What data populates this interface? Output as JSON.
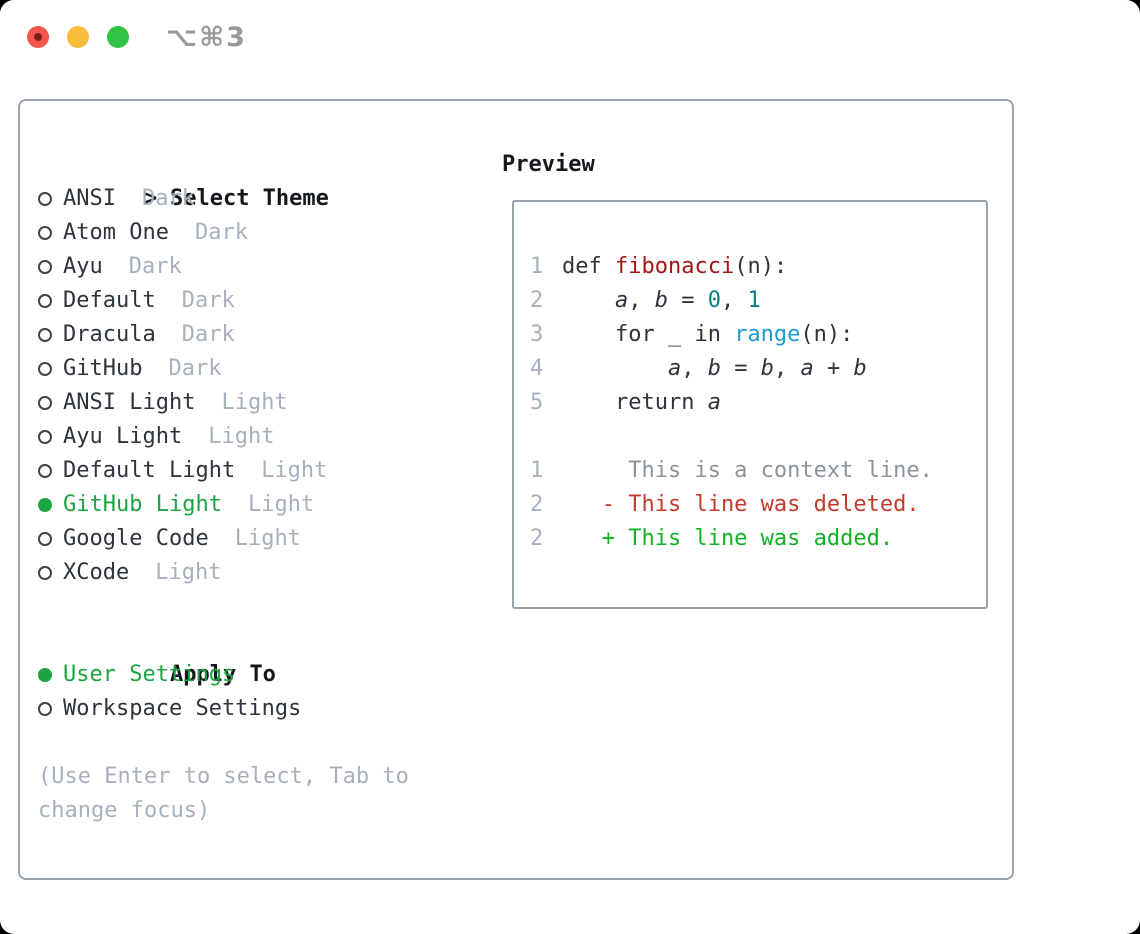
{
  "titlebar": {
    "shortcut": "⌥⌘3",
    "buttons": [
      {
        "name": "close",
        "color": "#f4564d"
      },
      {
        "name": "minimize",
        "color": "#f9bd3b"
      },
      {
        "name": "zoom",
        "color": "#2fc344"
      }
    ]
  },
  "theme_panel": {
    "header_prefix": ">",
    "header": "Select Theme",
    "items": [
      {
        "name": "ANSI",
        "tag": "Dark",
        "selected": false
      },
      {
        "name": "Atom One",
        "tag": "Dark",
        "selected": false
      },
      {
        "name": "Ayu",
        "tag": "Dark",
        "selected": false
      },
      {
        "name": "Default",
        "tag": "Dark",
        "selected": false
      },
      {
        "name": "Dracula",
        "tag": "Dark",
        "selected": false
      },
      {
        "name": "GitHub",
        "tag": "Dark",
        "selected": false
      },
      {
        "name": "ANSI Light",
        "tag": "Light",
        "selected": false
      },
      {
        "name": "Ayu Light",
        "tag": "Light",
        "selected": false
      },
      {
        "name": "Default Light",
        "tag": "Light",
        "selected": false
      },
      {
        "name": "GitHub Light",
        "tag": "Light",
        "selected": true
      },
      {
        "name": "Google Code",
        "tag": "Light",
        "selected": false
      },
      {
        "name": "XCode",
        "tag": "Light",
        "selected": false
      }
    ]
  },
  "apply_panel": {
    "header": "Apply To",
    "items": [
      {
        "name": "User Settings",
        "selected": true
      },
      {
        "name": "Workspace Settings",
        "selected": false
      }
    ]
  },
  "help_lines": [
    "(Use Enter to select, Tab to",
    "change focus)"
  ],
  "preview": {
    "title": "Preview",
    "lines": [
      {
        "num": "1",
        "tokens": [
          {
            "t": "def ",
            "c": "plain"
          },
          {
            "t": "fibonacci",
            "c": "function"
          },
          {
            "t": "(n):",
            "c": "plain"
          }
        ]
      },
      {
        "num": "2",
        "tokens": [
          {
            "t": "    ",
            "c": "plain"
          },
          {
            "t": "a",
            "c": "variable"
          },
          {
            "t": ", ",
            "c": "plain"
          },
          {
            "t": "b",
            "c": "variable"
          },
          {
            "t": " = ",
            "c": "plain"
          },
          {
            "t": "0",
            "c": "number"
          },
          {
            "t": ", ",
            "c": "plain"
          },
          {
            "t": "1",
            "c": "number"
          }
        ]
      },
      {
        "num": "3",
        "tokens": [
          {
            "t": "    for _ in ",
            "c": "plain"
          },
          {
            "t": "range",
            "c": "builtin"
          },
          {
            "t": "(n):",
            "c": "plain"
          }
        ]
      },
      {
        "num": "4",
        "tokens": [
          {
            "t": "        ",
            "c": "plain"
          },
          {
            "t": "a",
            "c": "variable"
          },
          {
            "t": ", ",
            "c": "plain"
          },
          {
            "t": "b",
            "c": "variable"
          },
          {
            "t": " = ",
            "c": "plain"
          },
          {
            "t": "b",
            "c": "variable"
          },
          {
            "t": ", ",
            "c": "plain"
          },
          {
            "t": "a",
            "c": "variable"
          },
          {
            "t": " + ",
            "c": "plain"
          },
          {
            "t": "b",
            "c": "variable"
          }
        ]
      },
      {
        "num": "5",
        "tokens": [
          {
            "t": "    return ",
            "c": "plain"
          },
          {
            "t": "a",
            "c": "variable"
          }
        ]
      },
      {
        "num": "",
        "tokens": []
      },
      {
        "num": "1",
        "tokens": [
          {
            "t": "     This is a context line.",
            "c": "context"
          }
        ]
      },
      {
        "num": "2",
        "tokens": [
          {
            "t": "   - This line was deleted.",
            "c": "deleted"
          }
        ]
      },
      {
        "num": "2",
        "tokens": [
          {
            "t": "   + This line was added.",
            "c": "added"
          }
        ]
      }
    ]
  },
  "colors": {
    "header_text": "#14181d",
    "item_text": "#2e343c",
    "tag_text": "#a7b0bd",
    "help_text": "#a7b0bd",
    "line_number": "#a7b0bd",
    "selected_green": "#1da442",
    "ring_border": "#3e444d",
    "box_border": "#9aa2ad",
    "shortcut_gray": "#98989d",
    "close_inner_dot": "#7c1f16",
    "syntax": {
      "plain": "#2e343c",
      "function": "#a31616",
      "number": "#0e7e86",
      "builtin": "#1f9ad1",
      "variable": "#2e343c",
      "context": "#8b949e",
      "deleted": "#c23b2a",
      "added": "#12b224"
    }
  }
}
